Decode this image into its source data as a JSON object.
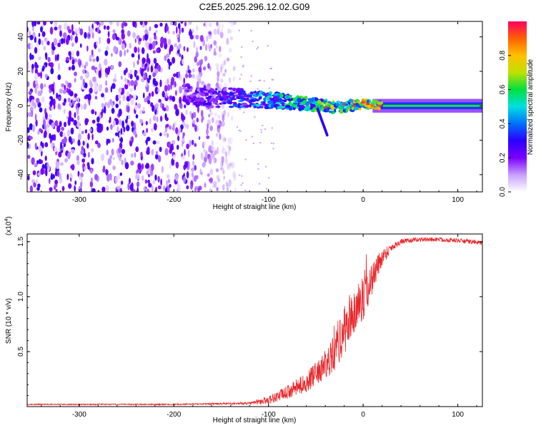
{
  "title": "C2E5.2025.296.12.02.G09",
  "chart_data": [
    {
      "type": "heatmap",
      "title": "C2E5.2025.296.12.02.G09",
      "xlabel": "Height of straight line (km)",
      "ylabel": "Frequency (Hz)",
      "xlim": [
        -355,
        126
      ],
      "ylim": [
        -50,
        49
      ],
      "xticks": [
        -300,
        -200,
        -100,
        0,
        100
      ],
      "xtick_labels": [
        "-300",
        "-200",
        "-100",
        "0",
        "100"
      ],
      "yticks": [
        -40,
        -20,
        0,
        20,
        40
      ],
      "ytick_labels": [
        "-40",
        "-20",
        "0",
        "20",
        "40"
      ],
      "colorbar": {
        "label": "Normalized spectral amplitude",
        "range": [
          0.0,
          1.0
        ],
        "ticks": [
          0.0,
          0.2,
          0.4,
          0.6,
          0.8
        ],
        "tick_labels": [
          "0.0",
          "0.2",
          "0.4",
          "0.6",
          "0.8"
        ],
        "colors": [
          "#ffffff",
          "#c8a0ff",
          "#7a00ff",
          "#2a00ff",
          "#0070ff",
          "#00e0e0",
          "#00e040",
          "#c0e000",
          "#ffc000",
          "#ff6000",
          "#ff0060"
        ]
      },
      "features": {
        "noise_region_x": [
          -355,
          -135
        ],
        "noise_amplitude": 0.3,
        "track": [
          {
            "x": -190,
            "f": 6,
            "amp": 0.2
          },
          {
            "x": -150,
            "f": 5,
            "amp": 0.3
          },
          {
            "x": -120,
            "f": 4,
            "amp": 0.4
          },
          {
            "x": -90,
            "f": 3,
            "amp": 0.5
          },
          {
            "x": -60,
            "f": 1,
            "amp": 0.55
          },
          {
            "x": -30,
            "f": -1,
            "amp": 0.65
          },
          {
            "x": 0,
            "f": 1,
            "amp": 0.8
          },
          {
            "x": 20,
            "f": 0,
            "amp": 0.7
          },
          {
            "x": 126,
            "f": 0,
            "amp": 0.6
          }
        ],
        "tail": {
          "x": -45,
          "f": -17
        }
      }
    },
    {
      "type": "line",
      "xlabel": "Height of straight line (km)",
      "ylabel": "SNR (10 * v/v)",
      "y_multiplier": "(x10^4)",
      "xlim": [
        -355,
        126
      ],
      "ylim": [
        0,
        1.57
      ],
      "xticks": [
        -300,
        -200,
        -100,
        0,
        100
      ],
      "xtick_labels": [
        "-300",
        "-200",
        "-100",
        "0",
        "100"
      ],
      "yticks": [
        0.5,
        1.0,
        1.5
      ],
      "ytick_labels": [
        "0.5",
        "1.0",
        "1.5"
      ],
      "series": [
        {
          "name": "SNR",
          "color": "#e8272b",
          "envelope": {
            "x": [
              -355,
              -200,
              -120,
              -100,
              -80,
              -60,
              -40,
              -30,
              -20,
              -10,
              0,
              10,
              20,
              30,
              40,
              60,
              80,
              100,
              126
            ],
            "mean": [
              0.02,
              0.02,
              0.03,
              0.06,
              0.13,
              0.22,
              0.37,
              0.5,
              0.68,
              0.85,
              0.98,
              1.18,
              1.36,
              1.45,
              1.5,
              1.52,
              1.52,
              1.51,
              1.49
            ],
            "noise": [
              0.005,
              0.006,
              0.01,
              0.04,
              0.06,
              0.09,
              0.13,
              0.17,
              0.22,
              0.22,
              0.2,
              0.15,
              0.08,
              0.04,
              0.025,
              0.02,
              0.02,
              0.02,
              0.02
            ]
          }
        }
      ]
    }
  ]
}
